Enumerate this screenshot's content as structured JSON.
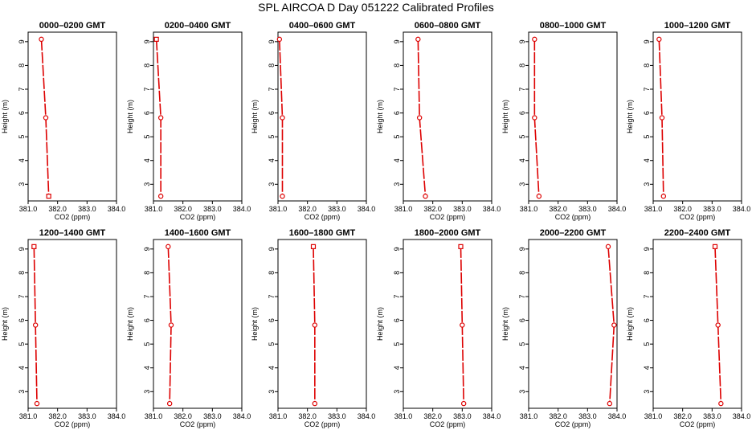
{
  "figure": {
    "title": "SPL AIRCOA D  Day 051222  Calibrated Profiles"
  },
  "style": {
    "series_color": "#dd0000",
    "axis_color": "#000000"
  },
  "chart_data": [
    {
      "type": "line",
      "title": "0000–0200 GMT",
      "xlabel": "CO2 (ppm)",
      "ylabel": "Height (m)",
      "xlim": [
        381.0,
        384.0
      ],
      "ylim": [
        2.3,
        9.4
      ],
      "xticks": [
        "381.0",
        "382.0",
        "383.0",
        "384.0"
      ],
      "yticks": [
        "3",
        "4",
        "5",
        "6",
        "7",
        "8",
        "9"
      ],
      "series": [
        {
          "x": [
            381.45,
            381.6,
            381.7
          ],
          "y": [
            9.1,
            5.8,
            2.5
          ],
          "markers": [
            "circle",
            "circle",
            "square"
          ]
        }
      ]
    },
    {
      "type": "line",
      "title": "0200–0400 GMT",
      "xlabel": "CO2 (ppm)",
      "ylabel": "Height (m)",
      "xlim": [
        381.0,
        384.0
      ],
      "ylim": [
        2.3,
        9.4
      ],
      "xticks": [
        "381.0",
        "382.0",
        "383.0",
        "384.0"
      ],
      "yticks": [
        "3",
        "4",
        "5",
        "6",
        "7",
        "8",
        "9"
      ],
      "series": [
        {
          "x": [
            381.1,
            381.25,
            381.25
          ],
          "y": [
            9.1,
            5.8,
            2.5
          ],
          "markers": [
            "square",
            "circle",
            "circle"
          ]
        }
      ]
    },
    {
      "type": "line",
      "title": "0400–0600 GMT",
      "xlabel": "CO2 (ppm)",
      "ylabel": "Height (m)",
      "xlim": [
        381.0,
        384.0
      ],
      "ylim": [
        2.3,
        9.4
      ],
      "xticks": [
        "381.0",
        "382.0",
        "383.0",
        "384.0"
      ],
      "yticks": [
        "3",
        "4",
        "5",
        "6",
        "7",
        "8",
        "9"
      ],
      "series": [
        {
          "x": [
            381.05,
            381.15,
            381.15
          ],
          "y": [
            9.1,
            5.8,
            2.5
          ],
          "markers": [
            "circle",
            "circle",
            "circle"
          ]
        }
      ]
    },
    {
      "type": "line",
      "title": "0600–0800 GMT",
      "xlabel": "CO2 (ppm)",
      "ylabel": "Height (m)",
      "xlim": [
        381.0,
        384.0
      ],
      "ylim": [
        2.3,
        9.4
      ],
      "xticks": [
        "381.0",
        "382.0",
        "383.0",
        "384.0"
      ],
      "yticks": [
        "3",
        "4",
        "5",
        "6",
        "7",
        "8",
        "9"
      ],
      "series": [
        {
          "x": [
            381.5,
            381.55,
            381.75
          ],
          "y": [
            9.1,
            5.8,
            2.5
          ],
          "markers": [
            "circle",
            "circle",
            "circle"
          ]
        }
      ]
    },
    {
      "type": "line",
      "title": "0800–1000 GMT",
      "xlabel": "CO2 (ppm)",
      "ylabel": "Height (m)",
      "xlim": [
        381.0,
        384.0
      ],
      "ylim": [
        2.3,
        9.4
      ],
      "xticks": [
        "381.0",
        "382.0",
        "383.0",
        "384.0"
      ],
      "yticks": [
        "3",
        "4",
        "5",
        "6",
        "7",
        "8",
        "9"
      ],
      "series": [
        {
          "x": [
            381.2,
            381.2,
            381.35
          ],
          "y": [
            9.1,
            5.8,
            2.5
          ],
          "markers": [
            "circle",
            "circle",
            "circle"
          ]
        }
      ]
    },
    {
      "type": "line",
      "title": "1000–1200 GMT",
      "xlabel": "CO2 (ppm)",
      "ylabel": "Height (m)",
      "xlim": [
        381.0,
        384.0
      ],
      "ylim": [
        2.3,
        9.4
      ],
      "xticks": [
        "381.0",
        "382.0",
        "383.0",
        "384.0"
      ],
      "yticks": [
        "3",
        "4",
        "5",
        "6",
        "7",
        "8",
        "9"
      ],
      "series": [
        {
          "x": [
            381.2,
            381.3,
            381.35
          ],
          "y": [
            9.1,
            5.8,
            2.5
          ],
          "markers": [
            "circle",
            "circle",
            "circle"
          ]
        }
      ]
    },
    {
      "type": "line",
      "title": "1200–1400 GMT",
      "xlabel": "CO2 (ppm)",
      "ylabel": "Height (m)",
      "xlim": [
        381.0,
        384.0
      ],
      "ylim": [
        2.3,
        9.4
      ],
      "xticks": [
        "381.0",
        "382.0",
        "383.0",
        "384.0"
      ],
      "yticks": [
        "3",
        "4",
        "5",
        "6",
        "7",
        "8",
        "9"
      ],
      "series": [
        {
          "x": [
            381.2,
            381.25,
            381.3
          ],
          "y": [
            9.1,
            5.8,
            2.5
          ],
          "markers": [
            "square",
            "circle",
            "circle"
          ]
        }
      ]
    },
    {
      "type": "line",
      "title": "1400–1600 GMT",
      "xlabel": "CO2 (ppm)",
      "ylabel": "Height (m)",
      "xlim": [
        381.0,
        384.0
      ],
      "ylim": [
        2.3,
        9.4
      ],
      "xticks": [
        "381.0",
        "382.0",
        "383.0",
        "384.0"
      ],
      "yticks": [
        "3",
        "4",
        "5",
        "6",
        "7",
        "8",
        "9"
      ],
      "series": [
        {
          "x": [
            381.5,
            381.6,
            381.55
          ],
          "y": [
            9.1,
            5.8,
            2.5
          ],
          "markers": [
            "circle",
            "circle",
            "circle"
          ]
        }
      ]
    },
    {
      "type": "line",
      "title": "1600–1800 GMT",
      "xlabel": "CO2 (ppm)",
      "ylabel": "Height (m)",
      "xlim": [
        381.0,
        384.0
      ],
      "ylim": [
        2.3,
        9.4
      ],
      "xticks": [
        "381.0",
        "382.0",
        "383.0",
        "384.0"
      ],
      "yticks": [
        "3",
        "4",
        "5",
        "6",
        "7",
        "8",
        "9"
      ],
      "series": [
        {
          "x": [
            382.2,
            382.25,
            382.25
          ],
          "y": [
            9.1,
            5.8,
            2.5
          ],
          "markers": [
            "square",
            "circle",
            "circle"
          ]
        }
      ]
    },
    {
      "type": "line",
      "title": "1800–2000 GMT",
      "xlabel": "CO2 (ppm)",
      "ylabel": "Height (m)",
      "xlim": [
        381.0,
        384.0
      ],
      "ylim": [
        2.3,
        9.4
      ],
      "xticks": [
        "381.0",
        "382.0",
        "383.0",
        "384.0"
      ],
      "yticks": [
        "3",
        "4",
        "5",
        "6",
        "7",
        "8",
        "9"
      ],
      "series": [
        {
          "x": [
            382.95,
            383.0,
            383.05
          ],
          "y": [
            9.1,
            5.8,
            2.5
          ],
          "markers": [
            "square",
            "circle",
            "circle"
          ]
        }
      ]
    },
    {
      "type": "line",
      "title": "2000–2200 GMT",
      "xlabel": "CO2 (ppm)",
      "ylabel": "Height (m)",
      "xlim": [
        381.0,
        384.0
      ],
      "ylim": [
        2.3,
        9.4
      ],
      "xticks": [
        "381.0",
        "382.0",
        "383.0",
        "384.0"
      ],
      "yticks": [
        "3",
        "4",
        "5",
        "6",
        "7",
        "8",
        "9"
      ],
      "series": [
        {
          "x": [
            383.7,
            383.9,
            383.75
          ],
          "y": [
            9.1,
            5.8,
            2.5
          ],
          "markers": [
            "circle",
            "circle",
            "circle"
          ]
        }
      ]
    },
    {
      "type": "line",
      "title": "2200–2400 GMT",
      "xlabel": "CO2 (ppm)",
      "ylabel": "Height (m)",
      "xlim": [
        381.0,
        384.0
      ],
      "ylim": [
        2.3,
        9.4
      ],
      "xticks": [
        "381.0",
        "382.0",
        "383.0",
        "384.0"
      ],
      "yticks": [
        "3",
        "4",
        "5",
        "6",
        "7",
        "8",
        "9"
      ],
      "series": [
        {
          "x": [
            383.1,
            383.2,
            383.3
          ],
          "y": [
            9.1,
            5.8,
            2.5
          ],
          "markers": [
            "square",
            "circle",
            "circle"
          ]
        }
      ]
    }
  ]
}
